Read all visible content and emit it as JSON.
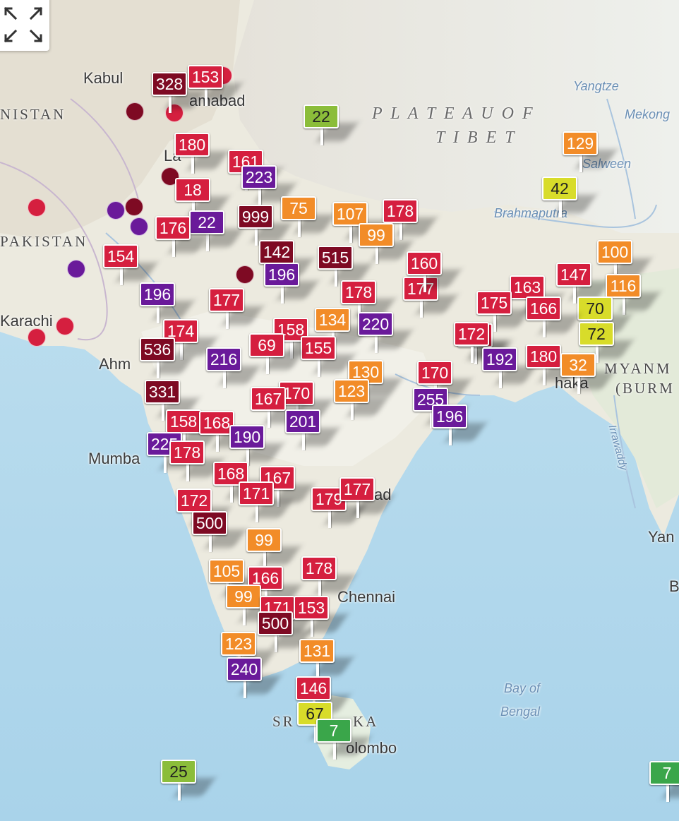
{
  "control": {
    "icon": "expand-icon"
  },
  "aqi_colors": {
    "good": "#3aa64a",
    "moderate_low": "#8bbd3a",
    "moderate": "#d8dc2a",
    "sensitive": "#f28c28",
    "unhealthy": "#d51f3f",
    "very_unhealthy": "#6a1a9a",
    "hazardous": "#7e0a23"
  },
  "places": [
    {
      "name": "Kabul",
      "kind": "city"
    },
    {
      "name": "Islamabad",
      "kind": "city",
      "shown": "amabad"
    },
    {
      "name": "NISTAN",
      "kind": "country"
    },
    {
      "name": "PAKISTAN",
      "kind": "country",
      "shown": "PAKISTAN"
    },
    {
      "name": "Karachi",
      "kind": "city"
    },
    {
      "name": "Ahm",
      "kind": "city"
    },
    {
      "name": "Mumba",
      "kind": "city"
    },
    {
      "name": "Chennai",
      "kind": "city"
    },
    {
      "name": "Colombo",
      "kind": "city",
      "shown": "olombo"
    },
    {
      "name": "SR",
      "kind": "country"
    },
    {
      "name": "KA",
      "kind": "country"
    },
    {
      "name": "PLATEAU OF",
      "kind": "region"
    },
    {
      "name": "TIBET",
      "kind": "region"
    },
    {
      "name": "Yangtze",
      "kind": "water"
    },
    {
      "name": "Mekong",
      "kind": "water"
    },
    {
      "name": "Salween",
      "kind": "water"
    },
    {
      "name": "Brahmaputra",
      "kind": "water"
    },
    {
      "name": "Irrawaddy",
      "kind": "water"
    },
    {
      "name": "Bay of",
      "kind": "water"
    },
    {
      "name": "Bengal",
      "kind": "water"
    },
    {
      "name": "MYANM",
      "kind": "country"
    },
    {
      "name": "(BURM",
      "kind": "country"
    },
    {
      "name": "haka",
      "kind": "city"
    },
    {
      "name": "Yan",
      "kind": "city"
    },
    {
      "name": "B",
      "kind": "city"
    },
    {
      "name": "ad",
      "kind": "city"
    },
    {
      "name": "La",
      "kind": "city"
    }
  ],
  "markers": [
    {
      "value": "328",
      "level": "hazardous"
    },
    {
      "value": "153",
      "level": "unhealthy"
    },
    {
      "value": "22",
      "level": "moderate_low"
    },
    {
      "value": "129",
      "level": "sensitive"
    },
    {
      "value": "42",
      "level": "moderate"
    },
    {
      "value": "180",
      "level": "unhealthy"
    },
    {
      "value": "161",
      "level": "unhealthy"
    },
    {
      "value": "223",
      "level": "very_unhealthy"
    },
    {
      "value": "18",
      "level": "unhealthy"
    },
    {
      "value": "22",
      "level": "very_unhealthy"
    },
    {
      "value": "999",
      "level": "hazardous"
    },
    {
      "value": "75",
      "level": "sensitive"
    },
    {
      "value": "107",
      "level": "sensitive"
    },
    {
      "value": "178",
      "level": "unhealthy"
    },
    {
      "value": "99",
      "level": "sensitive"
    },
    {
      "value": "176",
      "level": "unhealthy"
    },
    {
      "value": "142",
      "level": "hazardous"
    },
    {
      "value": "515",
      "level": "hazardous"
    },
    {
      "value": "154",
      "level": "unhealthy"
    },
    {
      "value": "196",
      "level": "very_unhealthy"
    },
    {
      "value": "196",
      "level": "very_unhealthy"
    },
    {
      "value": "178",
      "level": "unhealthy"
    },
    {
      "value": "177",
      "level": "unhealthy"
    },
    {
      "value": "177",
      "level": "unhealthy"
    },
    {
      "value": "160",
      "level": "unhealthy"
    },
    {
      "value": "163",
      "level": "unhealthy"
    },
    {
      "value": "147",
      "level": "unhealthy"
    },
    {
      "value": "100",
      "level": "sensitive"
    },
    {
      "value": "116",
      "level": "sensitive"
    },
    {
      "value": "70",
      "level": "moderate"
    },
    {
      "value": "175",
      "level": "unhealthy"
    },
    {
      "value": "166",
      "level": "unhealthy"
    },
    {
      "value": "172",
      "level": "unhealthy"
    },
    {
      "value": "134",
      "level": "sensitive"
    },
    {
      "value": "220",
      "level": "very_unhealthy"
    },
    {
      "value": "158",
      "level": "unhealthy"
    },
    {
      "value": "155",
      "level": "unhealthy"
    },
    {
      "value": "174",
      "level": "unhealthy"
    },
    {
      "value": "69",
      "level": "unhealthy"
    },
    {
      "value": "536",
      "level": "hazardous"
    },
    {
      "value": "216",
      "level": "very_unhealthy"
    },
    {
      "value": "172",
      "level": "unhealthy"
    },
    {
      "value": "192",
      "level": "very_unhealthy"
    },
    {
      "value": "180",
      "level": "unhealthy"
    },
    {
      "value": "72",
      "level": "moderate"
    },
    {
      "value": "32",
      "level": "sensitive"
    },
    {
      "value": "130",
      "level": "sensitive"
    },
    {
      "value": "170",
      "level": "unhealthy"
    },
    {
      "value": "331",
      "level": "hazardous"
    },
    {
      "value": "170",
      "level": "unhealthy"
    },
    {
      "value": "167",
      "level": "unhealthy"
    },
    {
      "value": "123",
      "level": "sensitive"
    },
    {
      "value": "255",
      "level": "very_unhealthy"
    },
    {
      "value": "196",
      "level": "very_unhealthy"
    },
    {
      "value": "158",
      "level": "unhealthy"
    },
    {
      "value": "168",
      "level": "unhealthy"
    },
    {
      "value": "201",
      "level": "very_unhealthy"
    },
    {
      "value": "225",
      "level": "very_unhealthy"
    },
    {
      "value": "190",
      "level": "very_unhealthy"
    },
    {
      "value": "178",
      "level": "unhealthy"
    },
    {
      "value": "168",
      "level": "unhealthy"
    },
    {
      "value": "167",
      "level": "unhealthy"
    },
    {
      "value": "172",
      "level": "unhealthy"
    },
    {
      "value": "171",
      "level": "unhealthy"
    },
    {
      "value": "179",
      "level": "unhealthy"
    },
    {
      "value": "177",
      "level": "unhealthy"
    },
    {
      "value": "500",
      "level": "hazardous"
    },
    {
      "value": "99",
      "level": "sensitive"
    },
    {
      "value": "178",
      "level": "unhealthy"
    },
    {
      "value": "105",
      "level": "sensitive"
    },
    {
      "value": "166",
      "level": "unhealthy"
    },
    {
      "value": "99",
      "level": "sensitive"
    },
    {
      "value": "171",
      "level": "unhealthy"
    },
    {
      "value": "153",
      "level": "unhealthy"
    },
    {
      "value": "500",
      "level": "hazardous"
    },
    {
      "value": "123",
      "level": "sensitive"
    },
    {
      "value": "131",
      "level": "sensitive"
    },
    {
      "value": "240",
      "level": "very_unhealthy"
    },
    {
      "value": "146",
      "level": "unhealthy"
    },
    {
      "value": "67",
      "level": "moderate"
    },
    {
      "value": "7",
      "level": "good"
    },
    {
      "value": "25",
      "level": "moderate_low"
    },
    {
      "value": "7",
      "level": "good"
    }
  ],
  "dots": [
    {
      "level": "hazardous"
    },
    {
      "level": "unhealthy"
    },
    {
      "level": "unhealthy"
    },
    {
      "level": "very_unhealthy"
    },
    {
      "level": "hazardous"
    },
    {
      "level": "very_unhealthy"
    },
    {
      "level": "very_unhealthy"
    },
    {
      "level": "unhealthy"
    },
    {
      "level": "unhealthy"
    },
    {
      "level": "unhealthy"
    },
    {
      "level": "hazardous"
    },
    {
      "level": "hazardous"
    }
  ]
}
